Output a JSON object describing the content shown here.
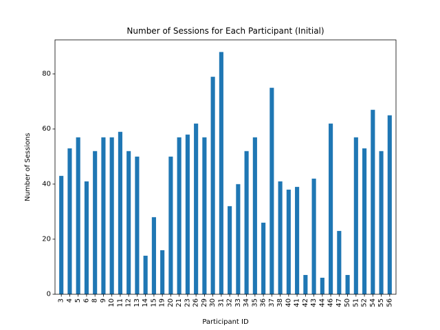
{
  "chart_data": {
    "type": "bar",
    "title": "Number of Sessions for Each Participant (Initial)",
    "xlabel": "Participant ID",
    "ylabel": "Number of Sessions",
    "categories": [
      "3",
      "4",
      "5",
      "6",
      "8",
      "9",
      "10",
      "11",
      "12",
      "13",
      "14",
      "15",
      "19",
      "20",
      "21",
      "23",
      "26",
      "29",
      "30",
      "31",
      "32",
      "33",
      "34",
      "35",
      "36",
      "37",
      "38",
      "40",
      "41",
      "42",
      "43",
      "44",
      "46",
      "47",
      "50",
      "51",
      "52",
      "54",
      "55",
      "56"
    ],
    "values": [
      43,
      53,
      57,
      41,
      52,
      57,
      57,
      59,
      52,
      50,
      14,
      28,
      16,
      50,
      57,
      58,
      62,
      57,
      79,
      88,
      32,
      40,
      52,
      57,
      26,
      75,
      41,
      38,
      39,
      7,
      42,
      6,
      62,
      23,
      7,
      57,
      53,
      67,
      52,
      65
    ],
    "yticks": [
      0,
      20,
      40,
      60,
      80
    ],
    "ylim": [
      0,
      92.4
    ],
    "grid": false,
    "legend": "none",
    "bar_color": "#1f77b4"
  }
}
